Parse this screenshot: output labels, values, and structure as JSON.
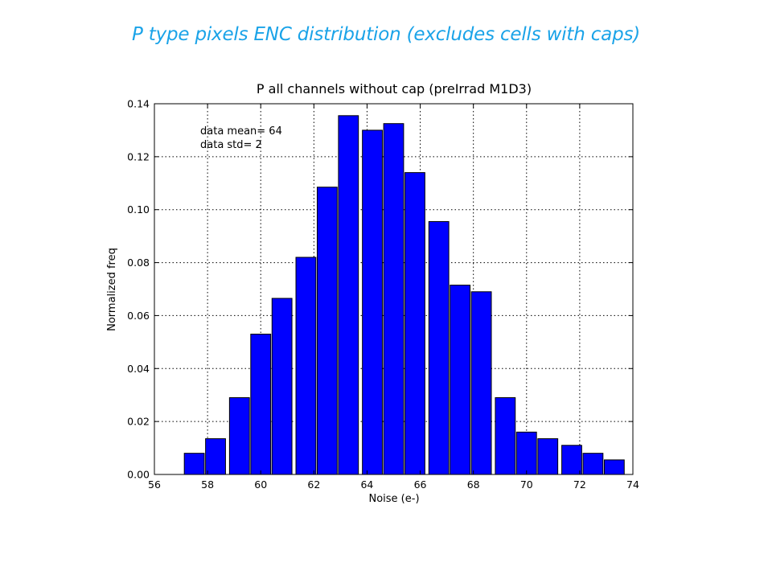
{
  "slide": {
    "title": "P type pixels ENC distribution (excludes cells with caps)",
    "title_color": "#1aa3e8"
  },
  "chart_data": {
    "type": "bar",
    "title": "P all channels without cap (preIrrad M1D3)",
    "xlabel": "Noise (e-)",
    "ylabel": "Normalized freq",
    "xlim": [
      56,
      74
    ],
    "ylim": [
      0,
      0.14
    ],
    "xticks": [
      "56",
      "58",
      "60",
      "62",
      "64",
      "66",
      "68",
      "70",
      "72",
      "74"
    ],
    "yticks": [
      "0.00",
      "0.02",
      "0.04",
      "0.06",
      "0.08",
      "0.10",
      "0.12",
      "0.14"
    ],
    "grid": true,
    "bar_color": "#0000ff",
    "annotations": [
      "data mean= 64",
      "data std= 2"
    ],
    "bins": [
      {
        "x": 57.5,
        "value": 0.008
      },
      {
        "x": 58.3,
        "value": 0.0135
      },
      {
        "x": 59.2,
        "value": 0.029
      },
      {
        "x": 60.0,
        "value": 0.053
      },
      {
        "x": 60.8,
        "value": 0.0665
      },
      {
        "x": 61.7,
        "value": 0.082
      },
      {
        "x": 62.5,
        "value": 0.1085
      },
      {
        "x": 63.3,
        "value": 0.1355
      },
      {
        "x": 64.2,
        "value": 0.13
      },
      {
        "x": 65.0,
        "value": 0.1325
      },
      {
        "x": 65.8,
        "value": 0.114
      },
      {
        "x": 66.7,
        "value": 0.0955
      },
      {
        "x": 67.5,
        "value": 0.0715
      },
      {
        "x": 68.3,
        "value": 0.069
      },
      {
        "x": 69.2,
        "value": 0.029
      },
      {
        "x": 70.0,
        "value": 0.016
      },
      {
        "x": 70.8,
        "value": 0.0135
      },
      {
        "x": 71.7,
        "value": 0.011
      },
      {
        "x": 72.5,
        "value": 0.008
      },
      {
        "x": 73.3,
        "value": 0.0055
      }
    ]
  }
}
